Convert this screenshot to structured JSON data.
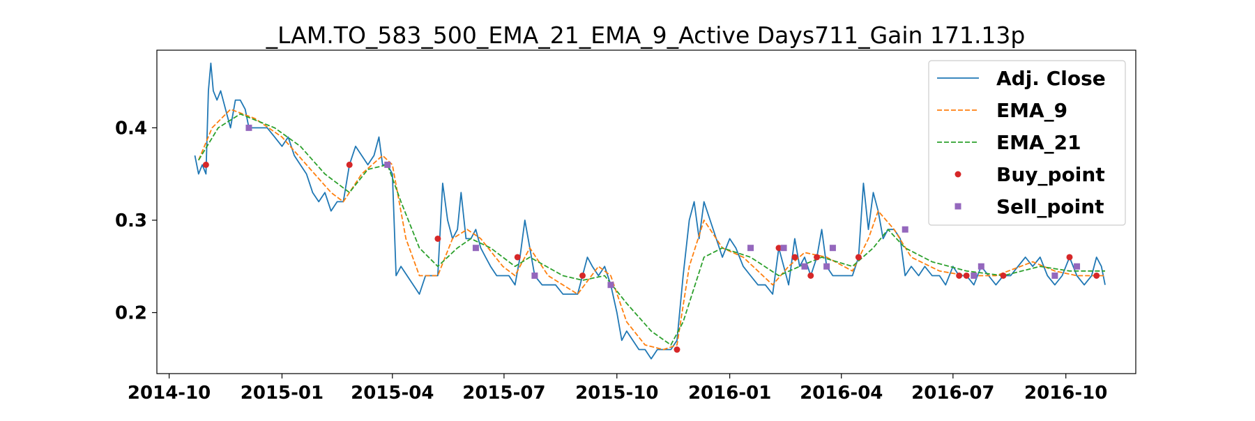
{
  "chart_data": {
    "type": "line",
    "title": "_LAM.TO_583_500_EMA_21_EMA_9_Active Days711_Gain 171.13p",
    "xlabel": "",
    "ylabel": "",
    "xlim": [
      "2014-09-21",
      "2016-11-27"
    ],
    "ylim": [
      0.134,
      0.484
    ],
    "x_ticks": [
      "2014-10",
      "2015-01",
      "2015-04",
      "2015-07",
      "2015-10",
      "2016-01",
      "2016-04",
      "2016-07",
      "2016-10"
    ],
    "y_ticks": [
      0.2,
      0.3,
      0.4
    ],
    "grid": false,
    "legend_position": "top-right",
    "series": [
      {
        "name": "Adj. Close",
        "style": "solid",
        "color": "#1f77b4",
        "points": [
          [
            "2014-10-22",
            0.37
          ],
          [
            "2014-10-25",
            0.35
          ],
          [
            "2014-10-28",
            0.36
          ],
          [
            "2014-10-31",
            0.35
          ],
          [
            "2014-11-02",
            0.44
          ],
          [
            "2014-11-04",
            0.47
          ],
          [
            "2014-11-06",
            0.44
          ],
          [
            "2014-11-09",
            0.43
          ],
          [
            "2014-11-12",
            0.44
          ],
          [
            "2014-11-16",
            0.42
          ],
          [
            "2014-11-20",
            0.4
          ],
          [
            "2014-11-24",
            0.43
          ],
          [
            "2014-11-28",
            0.43
          ],
          [
            "2014-12-02",
            0.42
          ],
          [
            "2014-12-05",
            0.4
          ],
          [
            "2014-12-10",
            0.4
          ],
          [
            "2014-12-15",
            0.4
          ],
          [
            "2014-12-20",
            0.4
          ],
          [
            "2014-12-26",
            0.39
          ],
          [
            "2015-01-01",
            0.38
          ],
          [
            "2015-01-06",
            0.39
          ],
          [
            "2015-01-11",
            0.37
          ],
          [
            "2015-01-16",
            0.36
          ],
          [
            "2015-01-21",
            0.35
          ],
          [
            "2015-01-26",
            0.33
          ],
          [
            "2015-01-31",
            0.32
          ],
          [
            "2015-02-05",
            0.33
          ],
          [
            "2015-02-10",
            0.31
          ],
          [
            "2015-02-15",
            0.32
          ],
          [
            "2015-02-20",
            0.32
          ],
          [
            "2015-02-25",
            0.36
          ],
          [
            "2015-03-02",
            0.38
          ],
          [
            "2015-03-07",
            0.37
          ],
          [
            "2015-03-12",
            0.36
          ],
          [
            "2015-03-17",
            0.37
          ],
          [
            "2015-03-21",
            0.39
          ],
          [
            "2015-03-24",
            0.36
          ],
          [
            "2015-03-28",
            0.36
          ],
          [
            "2015-04-01",
            0.35
          ],
          [
            "2015-04-04",
            0.24
          ],
          [
            "2015-04-08",
            0.25
          ],
          [
            "2015-04-13",
            0.24
          ],
          [
            "2015-04-18",
            0.23
          ],
          [
            "2015-04-23",
            0.22
          ],
          [
            "2015-04-28",
            0.24
          ],
          [
            "2015-05-03",
            0.24
          ],
          [
            "2015-05-08",
            0.24
          ],
          [
            "2015-05-12",
            0.34
          ],
          [
            "2015-05-16",
            0.3
          ],
          [
            "2015-05-20",
            0.28
          ],
          [
            "2015-05-24",
            0.29
          ],
          [
            "2015-05-27",
            0.33
          ],
          [
            "2015-05-31",
            0.28
          ],
          [
            "2015-06-04",
            0.28
          ],
          [
            "2015-06-08",
            0.29
          ],
          [
            "2015-06-12",
            0.27
          ],
          [
            "2015-06-16",
            0.26
          ],
          [
            "2015-06-20",
            0.25
          ],
          [
            "2015-06-25",
            0.24
          ],
          [
            "2015-06-30",
            0.24
          ],
          [
            "2015-07-05",
            0.24
          ],
          [
            "2015-07-10",
            0.23
          ],
          [
            "2015-07-14",
            0.26
          ],
          [
            "2015-07-18",
            0.3
          ],
          [
            "2015-07-22",
            0.27
          ],
          [
            "2015-07-26",
            0.24
          ],
          [
            "2015-08-01",
            0.23
          ],
          [
            "2015-08-06",
            0.23
          ],
          [
            "2015-08-12",
            0.23
          ],
          [
            "2015-08-18",
            0.22
          ],
          [
            "2015-08-24",
            0.22
          ],
          [
            "2015-08-30",
            0.22
          ],
          [
            "2015-09-03",
            0.24
          ],
          [
            "2015-09-07",
            0.26
          ],
          [
            "2015-09-11",
            0.25
          ],
          [
            "2015-09-16",
            0.24
          ],
          [
            "2015-09-21",
            0.25
          ],
          [
            "2015-09-26",
            0.23
          ],
          [
            "2015-10-01",
            0.2
          ],
          [
            "2015-10-05",
            0.17
          ],
          [
            "2015-10-09",
            0.18
          ],
          [
            "2015-10-14",
            0.17
          ],
          [
            "2015-10-19",
            0.16
          ],
          [
            "2015-10-24",
            0.16
          ],
          [
            "2015-10-29",
            0.15
          ],
          [
            "2015-11-03",
            0.16
          ],
          [
            "2015-11-08",
            0.16
          ],
          [
            "2015-11-14",
            0.16
          ],
          [
            "2015-11-19",
            0.17
          ],
          [
            "2015-11-24",
            0.24
          ],
          [
            "2015-11-29",
            0.3
          ],
          [
            "2015-12-03",
            0.32
          ],
          [
            "2015-12-07",
            0.28
          ],
          [
            "2015-12-11",
            0.32
          ],
          [
            "2015-12-16",
            0.3
          ],
          [
            "2015-12-21",
            0.28
          ],
          [
            "2015-12-26",
            0.26
          ],
          [
            "2016-01-01",
            0.28
          ],
          [
            "2016-01-06",
            0.27
          ],
          [
            "2016-01-12",
            0.25
          ],
          [
            "2016-01-18",
            0.24
          ],
          [
            "2016-01-24",
            0.23
          ],
          [
            "2016-01-30",
            0.23
          ],
          [
            "2016-02-05",
            0.22
          ],
          [
            "2016-02-10",
            0.27
          ],
          [
            "2016-02-14",
            0.25
          ],
          [
            "2016-02-18",
            0.23
          ],
          [
            "2016-02-23",
            0.28
          ],
          [
            "2016-02-27",
            0.25
          ],
          [
            "2016-03-02",
            0.26
          ],
          [
            "2016-03-07",
            0.24
          ],
          [
            "2016-03-12",
            0.26
          ],
          [
            "2016-03-16",
            0.29
          ],
          [
            "2016-03-20",
            0.25
          ],
          [
            "2016-03-25",
            0.24
          ],
          [
            "2016-03-31",
            0.24
          ],
          [
            "2016-04-05",
            0.24
          ],
          [
            "2016-04-10",
            0.24
          ],
          [
            "2016-04-15",
            0.26
          ],
          [
            "2016-04-19",
            0.34
          ],
          [
            "2016-04-23",
            0.29
          ],
          [
            "2016-04-27",
            0.33
          ],
          [
            "2016-05-01",
            0.31
          ],
          [
            "2016-05-05",
            0.28
          ],
          [
            "2016-05-09",
            0.29
          ],
          [
            "2016-05-14",
            0.29
          ],
          [
            "2016-05-19",
            0.28
          ],
          [
            "2016-05-23",
            0.24
          ],
          [
            "2016-05-28",
            0.25
          ],
          [
            "2016-06-03",
            0.24
          ],
          [
            "2016-06-08",
            0.25
          ],
          [
            "2016-06-14",
            0.24
          ],
          [
            "2016-06-20",
            0.24
          ],
          [
            "2016-06-25",
            0.23
          ],
          [
            "2016-07-01",
            0.25
          ],
          [
            "2016-07-06",
            0.24
          ],
          [
            "2016-07-12",
            0.24
          ],
          [
            "2016-07-18",
            0.23
          ],
          [
            "2016-07-24",
            0.25
          ],
          [
            "2016-07-30",
            0.24
          ],
          [
            "2016-08-05",
            0.23
          ],
          [
            "2016-08-11",
            0.24
          ],
          [
            "2016-08-17",
            0.24
          ],
          [
            "2016-08-23",
            0.25
          ],
          [
            "2016-08-29",
            0.26
          ],
          [
            "2016-09-04",
            0.25
          ],
          [
            "2016-09-10",
            0.26
          ],
          [
            "2016-09-16",
            0.24
          ],
          [
            "2016-09-22",
            0.23
          ],
          [
            "2016-09-28",
            0.24
          ],
          [
            "2016-10-04",
            0.26
          ],
          [
            "2016-10-10",
            0.24
          ],
          [
            "2016-10-16",
            0.23
          ],
          [
            "2016-10-22",
            0.24
          ],
          [
            "2016-10-26",
            0.26
          ],
          [
            "2016-10-30",
            0.25
          ],
          [
            "2016-11-02",
            0.23
          ]
        ]
      },
      {
        "name": "EMA_9",
        "style": "dashed",
        "color": "#ff7f0e",
        "points": [
          [
            "2014-10-25",
            0.365
          ],
          [
            "2014-11-05",
            0.4
          ],
          [
            "2014-11-20",
            0.42
          ],
          [
            "2014-12-10",
            0.41
          ],
          [
            "2015-01-01",
            0.39
          ],
          [
            "2015-01-21",
            0.36
          ],
          [
            "2015-02-10",
            0.33
          ],
          [
            "2015-02-20",
            0.32
          ],
          [
            "2015-03-07",
            0.35
          ],
          [
            "2015-03-24",
            0.37
          ],
          [
            "2015-04-01",
            0.36
          ],
          [
            "2015-04-12",
            0.28
          ],
          [
            "2015-04-23",
            0.24
          ],
          [
            "2015-05-08",
            0.24
          ],
          [
            "2015-05-20",
            0.28
          ],
          [
            "2015-06-01",
            0.29
          ],
          [
            "2015-06-12",
            0.28
          ],
          [
            "2015-06-30",
            0.25
          ],
          [
            "2015-07-10",
            0.24
          ],
          [
            "2015-07-22",
            0.27
          ],
          [
            "2015-08-06",
            0.24
          ],
          [
            "2015-08-30",
            0.22
          ],
          [
            "2015-09-16",
            0.25
          ],
          [
            "2015-09-26",
            0.24
          ],
          [
            "2015-10-09",
            0.19
          ],
          [
            "2015-10-24",
            0.165
          ],
          [
            "2015-11-08",
            0.16
          ],
          [
            "2015-11-19",
            0.165
          ],
          [
            "2015-11-29",
            0.25
          ],
          [
            "2015-12-11",
            0.3
          ],
          [
            "2015-12-26",
            0.27
          ],
          [
            "2016-01-12",
            0.26
          ],
          [
            "2016-02-05",
            0.23
          ],
          [
            "2016-02-18",
            0.25
          ],
          [
            "2016-03-02",
            0.265
          ],
          [
            "2016-03-20",
            0.26
          ],
          [
            "2016-04-10",
            0.245
          ],
          [
            "2016-04-23",
            0.28
          ],
          [
            "2016-05-01",
            0.31
          ],
          [
            "2016-05-14",
            0.29
          ],
          [
            "2016-05-28",
            0.26
          ],
          [
            "2016-06-20",
            0.245
          ],
          [
            "2016-07-12",
            0.24
          ],
          [
            "2016-08-05",
            0.24
          ],
          [
            "2016-09-04",
            0.255
          ],
          [
            "2016-09-22",
            0.245
          ],
          [
            "2016-10-10",
            0.24
          ],
          [
            "2016-11-02",
            0.24
          ]
        ]
      },
      {
        "name": "EMA_21",
        "style": "dashed",
        "color": "#2ca02c",
        "points": [
          [
            "2014-10-25",
            0.365
          ],
          [
            "2014-11-10",
            0.4
          ],
          [
            "2014-11-28",
            0.415
          ],
          [
            "2014-12-26",
            0.4
          ],
          [
            "2015-01-16",
            0.38
          ],
          [
            "2015-02-05",
            0.35
          ],
          [
            "2015-02-25",
            0.33
          ],
          [
            "2015-03-12",
            0.355
          ],
          [
            "2015-03-28",
            0.36
          ],
          [
            "2015-04-08",
            0.32
          ],
          [
            "2015-04-23",
            0.27
          ],
          [
            "2015-05-08",
            0.25
          ],
          [
            "2015-05-24",
            0.27
          ],
          [
            "2015-06-04",
            0.28
          ],
          [
            "2015-06-20",
            0.27
          ],
          [
            "2015-07-10",
            0.25
          ],
          [
            "2015-07-22",
            0.26
          ],
          [
            "2015-08-18",
            0.24
          ],
          [
            "2015-09-03",
            0.235
          ],
          [
            "2015-09-21",
            0.24
          ],
          [
            "2015-10-09",
            0.21
          ],
          [
            "2015-10-29",
            0.18
          ],
          [
            "2015-11-14",
            0.165
          ],
          [
            "2015-11-24",
            0.19
          ],
          [
            "2015-12-11",
            0.26
          ],
          [
            "2015-12-26",
            0.27
          ],
          [
            "2016-01-18",
            0.26
          ],
          [
            "2016-02-10",
            0.24
          ],
          [
            "2016-02-27",
            0.25
          ],
          [
            "2016-03-16",
            0.26
          ],
          [
            "2016-04-10",
            0.25
          ],
          [
            "2016-04-27",
            0.27
          ],
          [
            "2016-05-09",
            0.29
          ],
          [
            "2016-05-23",
            0.27
          ],
          [
            "2016-06-14",
            0.255
          ],
          [
            "2016-07-12",
            0.245
          ],
          [
            "2016-08-11",
            0.24
          ],
          [
            "2016-09-10",
            0.25
          ],
          [
            "2016-10-04",
            0.245
          ],
          [
            "2016-11-02",
            0.245
          ]
        ]
      },
      {
        "name": "Buy_point",
        "style": "marker-circle",
        "color": "#d62728",
        "points": [
          [
            "2014-10-31",
            0.36
          ],
          [
            "2015-02-25",
            0.36
          ],
          [
            "2015-05-08",
            0.28
          ],
          [
            "2015-07-12",
            0.26
          ],
          [
            "2015-09-03",
            0.24
          ],
          [
            "2015-11-19",
            0.16
          ],
          [
            "2016-02-10",
            0.27
          ],
          [
            "2016-02-23",
            0.26
          ],
          [
            "2016-03-07",
            0.24
          ],
          [
            "2016-03-12",
            0.26
          ],
          [
            "2016-04-15",
            0.26
          ],
          [
            "2016-07-06",
            0.24
          ],
          [
            "2016-07-12",
            0.24
          ],
          [
            "2016-08-11",
            0.24
          ],
          [
            "2016-10-04",
            0.26
          ],
          [
            "2016-10-26",
            0.24
          ]
        ]
      },
      {
        "name": "Sell_point",
        "style": "marker-square",
        "color": "#9467bd",
        "points": [
          [
            "2014-12-05",
            0.4
          ],
          [
            "2015-03-28",
            0.36
          ],
          [
            "2015-06-08",
            0.27
          ],
          [
            "2015-07-26",
            0.24
          ],
          [
            "2015-09-26",
            0.23
          ],
          [
            "2016-01-18",
            0.27
          ],
          [
            "2016-02-14",
            0.27
          ],
          [
            "2016-03-02",
            0.25
          ],
          [
            "2016-03-20",
            0.25
          ],
          [
            "2016-03-25",
            0.27
          ],
          [
            "2016-05-23",
            0.29
          ],
          [
            "2016-07-18",
            0.24
          ],
          [
            "2016-07-24",
            0.25
          ],
          [
            "2016-09-22",
            0.24
          ],
          [
            "2016-10-10",
            0.25
          ]
        ]
      }
    ]
  }
}
